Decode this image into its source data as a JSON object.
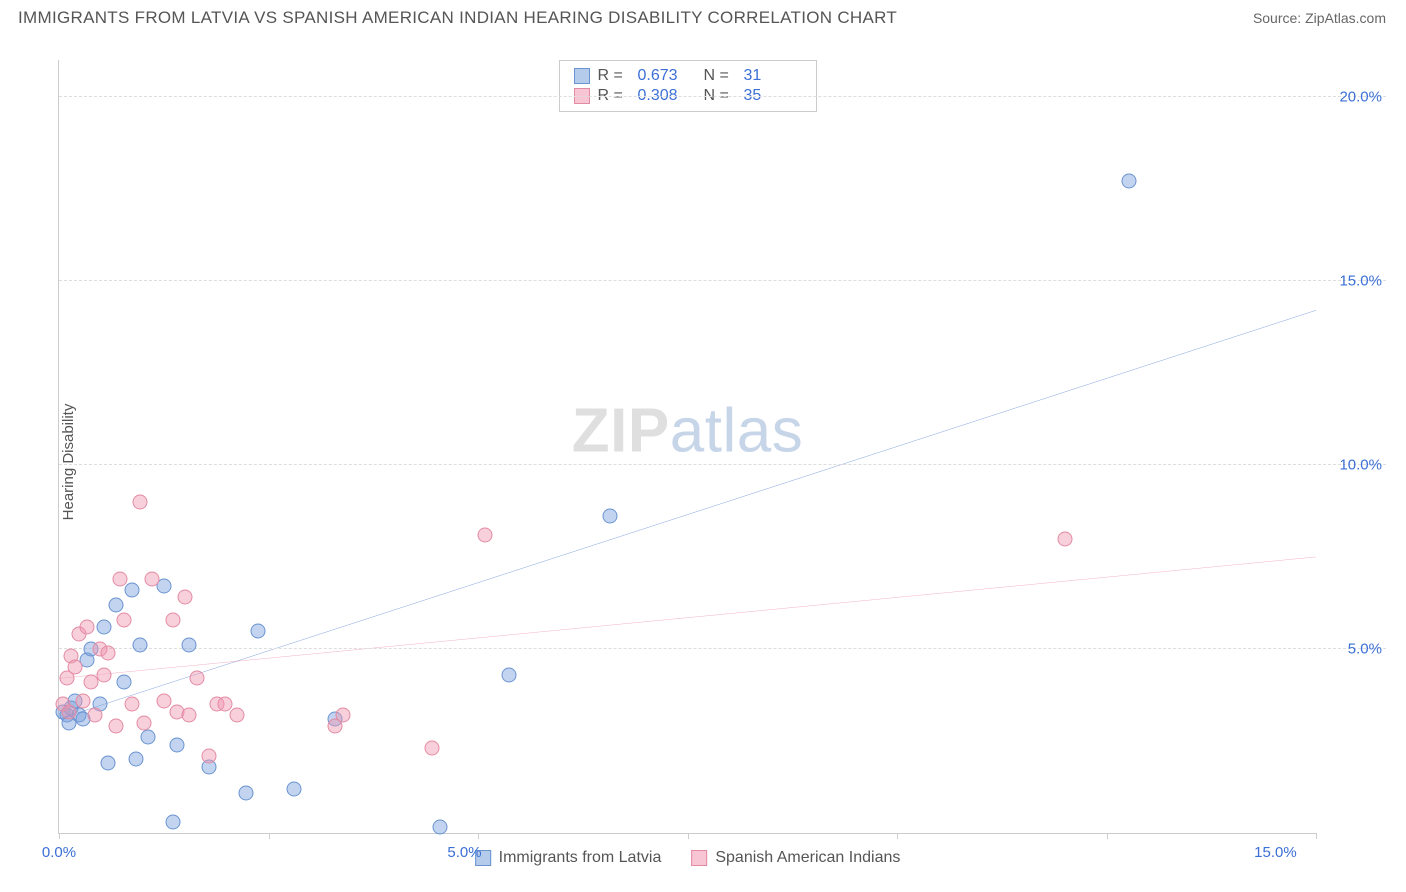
{
  "title": "IMMIGRANTS FROM LATVIA VS SPANISH AMERICAN INDIAN HEARING DISABILITY CORRELATION CHART",
  "source": "Source: ZipAtlas.com",
  "ylabel": "Hearing Disability",
  "watermark_a": "ZIP",
  "watermark_b": "atlas",
  "chart": {
    "type": "scatter",
    "xlim": [
      0,
      15.5
    ],
    "ylim": [
      0,
      21
    ],
    "x_ticks": [
      0.0,
      5.0,
      15.0
    ],
    "x_tick_labels": [
      "0.0%",
      "5.0%",
      "15.0%"
    ],
    "y_ticks": [
      5.0,
      10.0,
      15.0,
      20.0
    ],
    "y_tick_labels": [
      "5.0%",
      "10.0%",
      "15.0%",
      "20.0%"
    ],
    "grid_minor_x_count": 6,
    "background": "#ffffff",
    "grid_color": "#dddddd",
    "axis_color": "#cccccc",
    "tick_font_color": "#3b6fd6",
    "label_font_color": "#555555",
    "marker_radius": 7.5,
    "stats": [
      {
        "swatch": "blue",
        "r_label": "R =",
        "r": "0.673",
        "n_label": "N =",
        "n": "31"
      },
      {
        "swatch": "pink",
        "r_label": "R =",
        "r": "0.308",
        "n_label": "N =",
        "n": "35"
      }
    ],
    "series": [
      {
        "name": "Immigrants from Latvia",
        "color_fill": "rgba(120,160,220,0.45)",
        "color_stroke": "#6a93d1",
        "trend_color": "#2a5bc7",
        "trend_width": 2.2,
        "trend": {
          "x1": 0.0,
          "y1": 3.1,
          "x2": 15.5,
          "y2": 14.2
        },
        "points": [
          [
            0.05,
            3.3
          ],
          [
            0.1,
            3.2
          ],
          [
            0.12,
            3.0
          ],
          [
            0.15,
            3.4
          ],
          [
            0.2,
            3.6
          ],
          [
            0.25,
            3.2
          ],
          [
            0.3,
            3.1
          ],
          [
            0.35,
            4.7
          ],
          [
            0.4,
            5.0
          ],
          [
            0.5,
            3.5
          ],
          [
            0.55,
            5.6
          ],
          [
            0.6,
            1.9
          ],
          [
            0.7,
            6.2
          ],
          [
            0.8,
            4.1
          ],
          [
            0.9,
            6.6
          ],
          [
            0.95,
            2.0
          ],
          [
            1.0,
            5.1
          ],
          [
            1.1,
            2.6
          ],
          [
            1.3,
            6.7
          ],
          [
            1.4,
            0.3
          ],
          [
            1.45,
            2.4
          ],
          [
            1.6,
            5.1
          ],
          [
            1.85,
            1.8
          ],
          [
            2.3,
            1.1
          ],
          [
            2.45,
            5.5
          ],
          [
            2.9,
            1.2
          ],
          [
            3.4,
            3.1
          ],
          [
            4.7,
            0.15
          ],
          [
            5.55,
            4.3
          ],
          [
            6.8,
            8.6
          ],
          [
            13.2,
            17.7
          ]
        ]
      },
      {
        "name": "Spanish American Indians",
        "color_fill": "rgba(240,150,175,0.45)",
        "color_stroke": "#e38aa3",
        "trend_color": "#e76a8e",
        "trend_width": 2.0,
        "trend": {
          "x1": 0.0,
          "y1": 4.2,
          "x2": 15.5,
          "y2": 7.5
        },
        "points": [
          [
            0.05,
            3.5
          ],
          [
            0.1,
            4.2
          ],
          [
            0.12,
            3.3
          ],
          [
            0.15,
            4.8
          ],
          [
            0.2,
            4.5
          ],
          [
            0.25,
            5.4
          ],
          [
            0.3,
            3.6
          ],
          [
            0.35,
            5.6
          ],
          [
            0.4,
            4.1
          ],
          [
            0.45,
            3.2
          ],
          [
            0.5,
            5.0
          ],
          [
            0.55,
            4.3
          ],
          [
            0.6,
            4.9
          ],
          [
            0.7,
            2.9
          ],
          [
            0.75,
            6.9
          ],
          [
            0.8,
            5.8
          ],
          [
            0.9,
            3.5
          ],
          [
            1.0,
            9.0
          ],
          [
            1.05,
            3.0
          ],
          [
            1.15,
            6.9
          ],
          [
            1.3,
            3.6
          ],
          [
            1.4,
            5.8
          ],
          [
            1.45,
            3.3
          ],
          [
            1.55,
            6.4
          ],
          [
            1.6,
            3.2
          ],
          [
            1.7,
            4.2
          ],
          [
            1.85,
            2.1
          ],
          [
            1.95,
            3.5
          ],
          [
            2.05,
            3.5
          ],
          [
            2.2,
            3.2
          ],
          [
            3.4,
            2.9
          ],
          [
            3.5,
            3.2
          ],
          [
            4.6,
            2.3
          ],
          [
            5.25,
            8.1
          ],
          [
            12.4,
            8.0
          ]
        ]
      }
    ],
    "legend": [
      {
        "swatch": "blue",
        "label": "Immigrants from Latvia"
      },
      {
        "swatch": "pink",
        "label": "Spanish American Indians"
      }
    ]
  }
}
